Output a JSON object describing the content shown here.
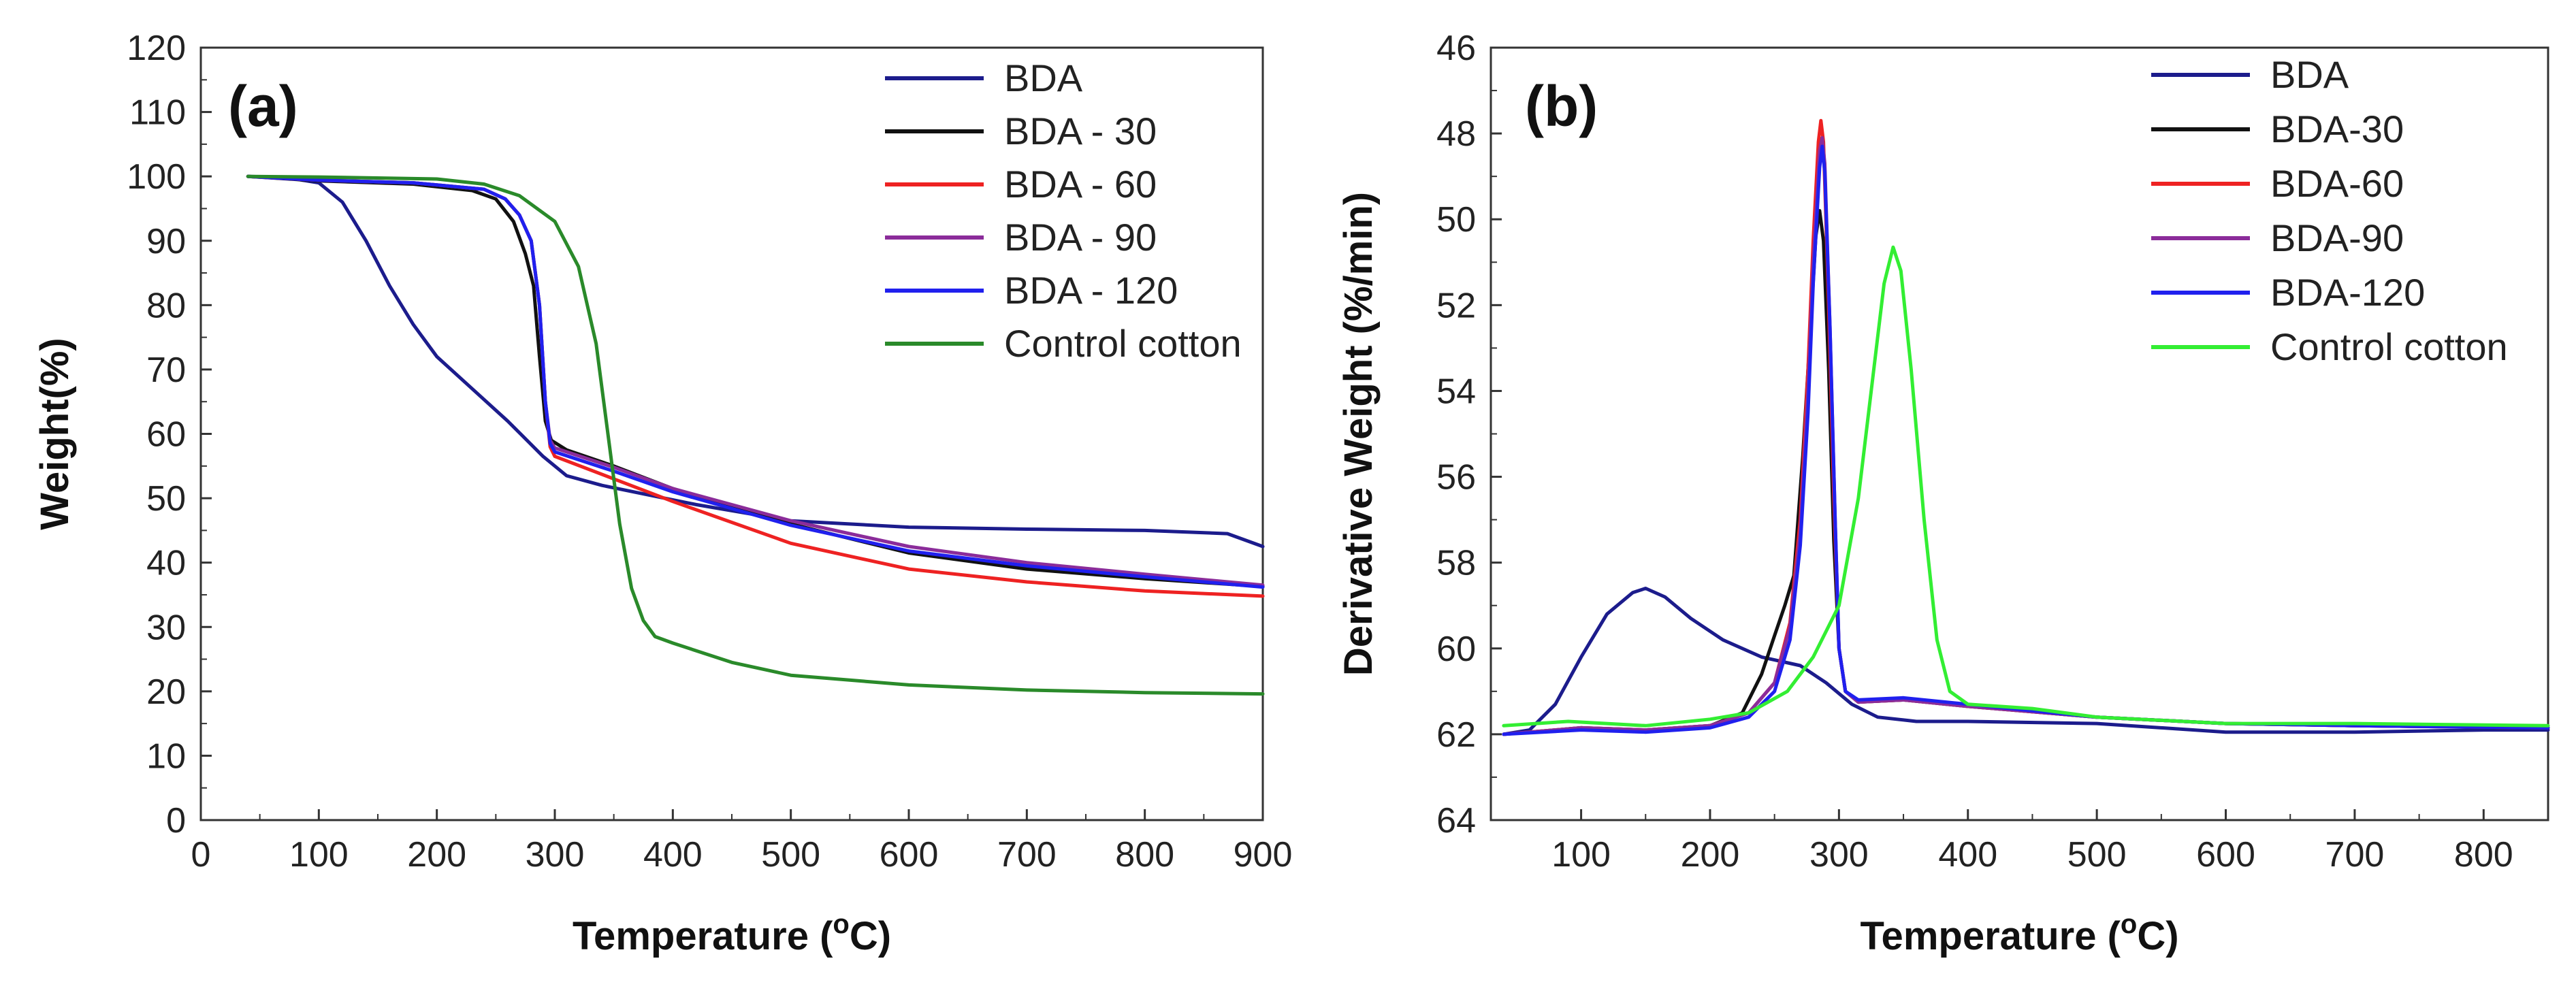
{
  "chart_data": [
    {
      "type": "line",
      "panel_label": "(a)",
      "xlabel": "Temperature",
      "xlabel_unit": "(°C)",
      "ylabel": "Weight(%)",
      "xlim": [
        0,
        900
      ],
      "ylim": [
        0,
        120
      ],
      "xticks": [
        0,
        100,
        200,
        300,
        400,
        500,
        600,
        700,
        800,
        900
      ],
      "yticks": [
        0,
        10,
        20,
        30,
        40,
        50,
        60,
        70,
        80,
        90,
        100,
        110,
        120
      ],
      "legend_position": "top-right",
      "series": [
        {
          "name": "BDA",
          "color": "#1c1c8c",
          "points": [
            [
              40,
              100
            ],
            [
              60,
              99.9
            ],
            [
              80,
              99.6
            ],
            [
              100,
              99
            ],
            [
              120,
              96
            ],
            [
              140,
              90
            ],
            [
              160,
              83
            ],
            [
              180,
              77
            ],
            [
              200,
              72
            ],
            [
              230,
              67
            ],
            [
              260,
              62
            ],
            [
              290,
              56.5
            ],
            [
              310,
              53.5
            ],
            [
              340,
              52
            ],
            [
              380,
              50.5
            ],
            [
              420,
              49
            ],
            [
              500,
              46.5
            ],
            [
              600,
              45.5
            ],
            [
              700,
              45.2
            ],
            [
              800,
              45
            ],
            [
              870,
              44.5
            ],
            [
              900,
              42.5
            ]
          ]
        },
        {
          "name": "BDA - 30",
          "color": "#111111",
          "points": [
            [
              40,
              100
            ],
            [
              100,
              99.3
            ],
            [
              180,
              98.8
            ],
            [
              230,
              97.8
            ],
            [
              250,
              96.5
            ],
            [
              265,
              93
            ],
            [
              275,
              88
            ],
            [
              282,
              83
            ],
            [
              287,
              72
            ],
            [
              292,
              62
            ],
            [
              297,
              59
            ],
            [
              310,
              57.5
            ],
            [
              350,
              55
            ],
            [
              400,
              51.5
            ],
            [
              500,
              46
            ],
            [
              600,
              41.5
            ],
            [
              700,
              39
            ],
            [
              800,
              37.5
            ],
            [
              900,
              36.3
            ]
          ]
        },
        {
          "name": "BDA - 60",
          "color": "#ee2222",
          "points": [
            [
              40,
              100
            ],
            [
              100,
              99.4
            ],
            [
              180,
              99
            ],
            [
              240,
              98
            ],
            [
              258,
              96.5
            ],
            [
              270,
              94
            ],
            [
              280,
              90
            ],
            [
              287,
              80
            ],
            [
              292,
              65
            ],
            [
              296,
              58
            ],
            [
              300,
              56.5
            ],
            [
              350,
              53
            ],
            [
              400,
              49.5
            ],
            [
              500,
              43
            ],
            [
              600,
              39
            ],
            [
              700,
              37
            ],
            [
              800,
              35.6
            ],
            [
              900,
              34.8
            ]
          ]
        },
        {
          "name": "BDA - 90",
          "color": "#8b2c9a",
          "points": [
            [
              40,
              100
            ],
            [
              100,
              99.4
            ],
            [
              180,
              99
            ],
            [
              240,
              98
            ],
            [
              258,
              96.5
            ],
            [
              270,
              94
            ],
            [
              280,
              90
            ],
            [
              287,
              80
            ],
            [
              292,
              65
            ],
            [
              296,
              59
            ],
            [
              300,
              57.8
            ],
            [
              350,
              54.8
            ],
            [
              400,
              51.5
            ],
            [
              500,
              46.5
            ],
            [
              600,
              42.5
            ],
            [
              700,
              40
            ],
            [
              800,
              38.2
            ],
            [
              900,
              36.5
            ]
          ]
        },
        {
          "name": "BDA - 120",
          "color": "#2020ee",
          "points": [
            [
              40,
              100
            ],
            [
              100,
              99.4
            ],
            [
              180,
              99
            ],
            [
              240,
              98
            ],
            [
              258,
              96.5
            ],
            [
              270,
              94
            ],
            [
              280,
              90
            ],
            [
              287,
              80
            ],
            [
              292,
              65
            ],
            [
              296,
              58.5
            ],
            [
              300,
              57.2
            ],
            [
              350,
              54.2
            ],
            [
              400,
              51
            ],
            [
              500,
              45.8
            ],
            [
              600,
              41.8
            ],
            [
              700,
              39.5
            ],
            [
              800,
              37.8
            ],
            [
              900,
              36.2
            ]
          ]
        },
        {
          "name": "Control cotton",
          "color": "#2a8a2a",
          "points": [
            [
              40,
              100
            ],
            [
              100,
              99.9
            ],
            [
              200,
              99.6
            ],
            [
              240,
              98.8
            ],
            [
              270,
              97
            ],
            [
              300,
              93
            ],
            [
              320,
              86
            ],
            [
              335,
              74
            ],
            [
              345,
              60
            ],
            [
              355,
              46
            ],
            [
              365,
              36
            ],
            [
              375,
              31
            ],
            [
              385,
              28.5
            ],
            [
              400,
              27.5
            ],
            [
              450,
              24.5
            ],
            [
              500,
              22.5
            ],
            [
              600,
              21
            ],
            [
              700,
              20.2
            ],
            [
              800,
              19.8
            ],
            [
              900,
              19.6
            ]
          ]
        }
      ]
    },
    {
      "type": "line",
      "panel_label": "(b)",
      "xlabel": "Temperature",
      "xlabel_unit": "(°C)",
      "ylabel": "Derivative Weight (%/min)",
      "xlim": [
        30,
        850
      ],
      "ylim": [
        46,
        64
      ],
      "y_inverted": true,
      "xticks": [
        100,
        200,
        300,
        400,
        500,
        600,
        700,
        800
      ],
      "yticks": [
        46,
        48,
        50,
        52,
        54,
        56,
        58,
        60,
        62,
        64
      ],
      "legend_position": "top-right",
      "series": [
        {
          "name": "BDA",
          "color": "#1c1c8c",
          "points": [
            [
              40,
              62
            ],
            [
              60,
              61.9
            ],
            [
              80,
              61.3
            ],
            [
              100,
              60.2
            ],
            [
              120,
              59.2
            ],
            [
              140,
              58.7
            ],
            [
              150,
              58.6
            ],
            [
              165,
              58.8
            ],
            [
              185,
              59.3
            ],
            [
              210,
              59.8
            ],
            [
              240,
              60.2
            ],
            [
              270,
              60.4
            ],
            [
              290,
              60.8
            ],
            [
              310,
              61.3
            ],
            [
              330,
              61.6
            ],
            [
              360,
              61.7
            ],
            [
              400,
              61.7
            ],
            [
              500,
              61.75
            ],
            [
              600,
              61.95
            ],
            [
              700,
              61.95
            ],
            [
              800,
              61.9
            ],
            [
              850,
              61.9
            ]
          ]
        },
        {
          "name": "BDA-30",
          "color": "#111111",
          "points": [
            [
              40,
              62
            ],
            [
              100,
              61.85
            ],
            [
              150,
              61.9
            ],
            [
              200,
              61.8
            ],
            [
              225,
              61.5
            ],
            [
              240,
              60.6
            ],
            [
              250,
              59.7
            ],
            [
              258,
              59
            ],
            [
              265,
              58.3
            ],
            [
              272,
              55.5
            ],
            [
              278,
              52.5
            ],
            [
              282,
              50.4
            ],
            [
              285,
              49.8
            ],
            [
              288,
              50.5
            ],
            [
              292,
              53.5
            ],
            [
              296,
              57.5
            ],
            [
              300,
              60
            ],
            [
              305,
              61
            ],
            [
              315,
              61.25
            ],
            [
              350,
              61.2
            ],
            [
              400,
              61.35
            ],
            [
              500,
              61.6
            ],
            [
              600,
              61.75
            ],
            [
              700,
              61.8
            ],
            [
              850,
              61.85
            ]
          ]
        },
        {
          "name": "BDA-60",
          "color": "#ee2222",
          "points": [
            [
              40,
              62
            ],
            [
              100,
              61.85
            ],
            [
              150,
              61.9
            ],
            [
              200,
              61.8
            ],
            [
              230,
              61.5
            ],
            [
              250,
              60.8
            ],
            [
              262,
              59.4
            ],
            [
              270,
              57
            ],
            [
              276,
              53.5
            ],
            [
              280,
              50.5
            ],
            [
              284,
              48.2
            ],
            [
              286,
              47.7
            ],
            [
              288,
              48.2
            ],
            [
              292,
              52
            ],
            [
              296,
              56.5
            ],
            [
              300,
              60
            ],
            [
              305,
              61
            ],
            [
              315,
              61.25
            ],
            [
              350,
              61.2
            ],
            [
              400,
              61.35
            ],
            [
              500,
              61.6
            ],
            [
              600,
              61.75
            ],
            [
              700,
              61.8
            ],
            [
              850,
              61.85
            ]
          ]
        },
        {
          "name": "BDA-90",
          "color": "#8b2c9a",
          "points": [
            [
              40,
              62
            ],
            [
              100,
              61.85
            ],
            [
              150,
              61.9
            ],
            [
              200,
              61.8
            ],
            [
              230,
              61.5
            ],
            [
              250,
              60.8
            ],
            [
              262,
              59.5
            ],
            [
              270,
              57.3
            ],
            [
              276,
              54
            ],
            [
              280,
              51
            ],
            [
              285,
              48.4
            ],
            [
              287,
              48.1
            ],
            [
              289,
              48.7
            ],
            [
              293,
              52.5
            ],
            [
              297,
              57
            ],
            [
              300,
              60
            ],
            [
              305,
              61
            ],
            [
              315,
              61.25
            ],
            [
              350,
              61.2
            ],
            [
              400,
              61.35
            ],
            [
              500,
              61.6
            ],
            [
              600,
              61.75
            ],
            [
              700,
              61.8
            ],
            [
              850,
              61.85
            ]
          ]
        },
        {
          "name": "BDA-120",
          "color": "#2020ee",
          "points": [
            [
              40,
              62
            ],
            [
              100,
              61.9
            ],
            [
              150,
              61.95
            ],
            [
              200,
              61.85
            ],
            [
              230,
              61.6
            ],
            [
              250,
              61
            ],
            [
              262,
              59.8
            ],
            [
              270,
              57.6
            ],
            [
              276,
              54.5
            ],
            [
              280,
              51.5
            ],
            [
              285,
              48.8
            ],
            [
              287,
              48.3
            ],
            [
              289,
              48.9
            ],
            [
              293,
              52.5
            ],
            [
              297,
              57
            ],
            [
              300,
              60
            ],
            [
              305,
              61
            ],
            [
              315,
              61.2
            ],
            [
              350,
              61.15
            ],
            [
              400,
              61.3
            ],
            [
              500,
              61.6
            ],
            [
              600,
              61.75
            ],
            [
              700,
              61.8
            ],
            [
              850,
              61.85
            ]
          ]
        },
        {
          "name": "Control cotton",
          "color": "#33ee33",
          "points": [
            [
              40,
              61.8
            ],
            [
              90,
              61.7
            ],
            [
              150,
              61.8
            ],
            [
              200,
              61.65
            ],
            [
              230,
              61.5
            ],
            [
              260,
              61
            ],
            [
              280,
              60.2
            ],
            [
              300,
              59
            ],
            [
              315,
              56.5
            ],
            [
              325,
              54
            ],
            [
              335,
              51.5
            ],
            [
              342,
              50.65
            ],
            [
              348,
              51.2
            ],
            [
              356,
              53.5
            ],
            [
              366,
              57
            ],
            [
              376,
              59.8
            ],
            [
              386,
              61
            ],
            [
              400,
              61.3
            ],
            [
              450,
              61.4
            ],
            [
              500,
              61.6
            ],
            [
              600,
              61.75
            ],
            [
              700,
              61.75
            ],
            [
              850,
              61.8
            ]
          ]
        }
      ]
    }
  ]
}
